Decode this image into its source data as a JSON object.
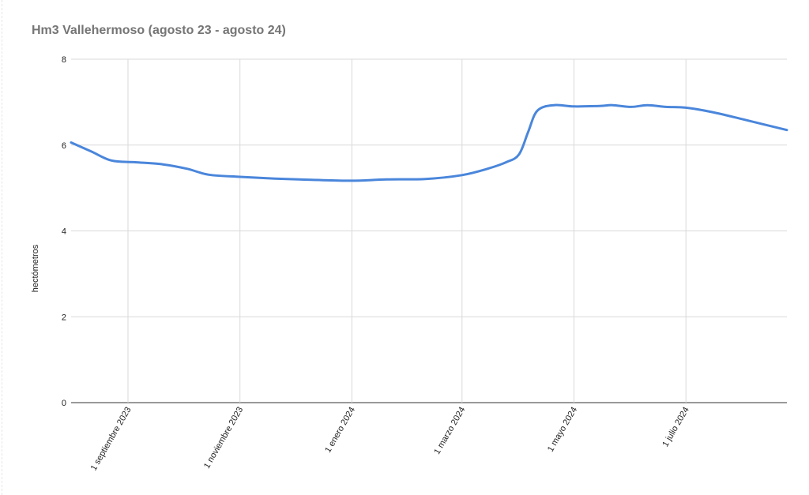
{
  "chart_data": {
    "type": "line",
    "title": "Hm3 Vallehermoso (agosto 23 - agosto 24)",
    "ylabel": "hectómetros",
    "xlabel": "",
    "ylim": [
      0,
      8
    ],
    "yticks": [
      0,
      2,
      4,
      6,
      8
    ],
    "grid": true,
    "x_range": [
      "2023-08-01",
      "2024-08-25"
    ],
    "xticks": [
      {
        "date": "2023-09-01",
        "label": "1 septiembre 2023"
      },
      {
        "date": "2023-11-01",
        "label": "1 noviembre 2023"
      },
      {
        "date": "2024-01-01",
        "label": "1 enero 2024"
      },
      {
        "date": "2024-03-01",
        "label": "1 marzo 2024"
      },
      {
        "date": "2024-05-01",
        "label": "1 mayo 2024"
      },
      {
        "date": "2024-07-01",
        "label": "1 julio 2024"
      }
    ],
    "series": [
      {
        "color": "#4a86db",
        "points": [
          {
            "x": "2023-08-01",
            "y": 6.06
          },
          {
            "x": "2023-08-12",
            "y": 5.85
          },
          {
            "x": "2023-08-23",
            "y": 5.64
          },
          {
            "x": "2023-09-05",
            "y": 5.6
          },
          {
            "x": "2023-09-20",
            "y": 5.55
          },
          {
            "x": "2023-10-03",
            "y": 5.45
          },
          {
            "x": "2023-10-15",
            "y": 5.31
          },
          {
            "x": "2023-11-01",
            "y": 5.26
          },
          {
            "x": "2023-11-20",
            "y": 5.22
          },
          {
            "x": "2023-12-10",
            "y": 5.19
          },
          {
            "x": "2024-01-01",
            "y": 5.17
          },
          {
            "x": "2024-01-20",
            "y": 5.2
          },
          {
            "x": "2024-02-10",
            "y": 5.21
          },
          {
            "x": "2024-03-01",
            "y": 5.3
          },
          {
            "x": "2024-03-15",
            "y": 5.45
          },
          {
            "x": "2024-03-25",
            "y": 5.6
          },
          {
            "x": "2024-04-01",
            "y": 5.78
          },
          {
            "x": "2024-04-06",
            "y": 6.3
          },
          {
            "x": "2024-04-11",
            "y": 6.8
          },
          {
            "x": "2024-04-20",
            "y": 6.93
          },
          {
            "x": "2024-05-01",
            "y": 6.9
          },
          {
            "x": "2024-05-15",
            "y": 6.91
          },
          {
            "x": "2024-05-22",
            "y": 6.93
          },
          {
            "x": "2024-06-01",
            "y": 6.89
          },
          {
            "x": "2024-06-10",
            "y": 6.93
          },
          {
            "x": "2024-06-20",
            "y": 6.89
          },
          {
            "x": "2024-07-01",
            "y": 6.87
          },
          {
            "x": "2024-07-15",
            "y": 6.77
          },
          {
            "x": "2024-08-01",
            "y": 6.6
          },
          {
            "x": "2024-08-25",
            "y": 6.35
          }
        ]
      }
    ]
  }
}
